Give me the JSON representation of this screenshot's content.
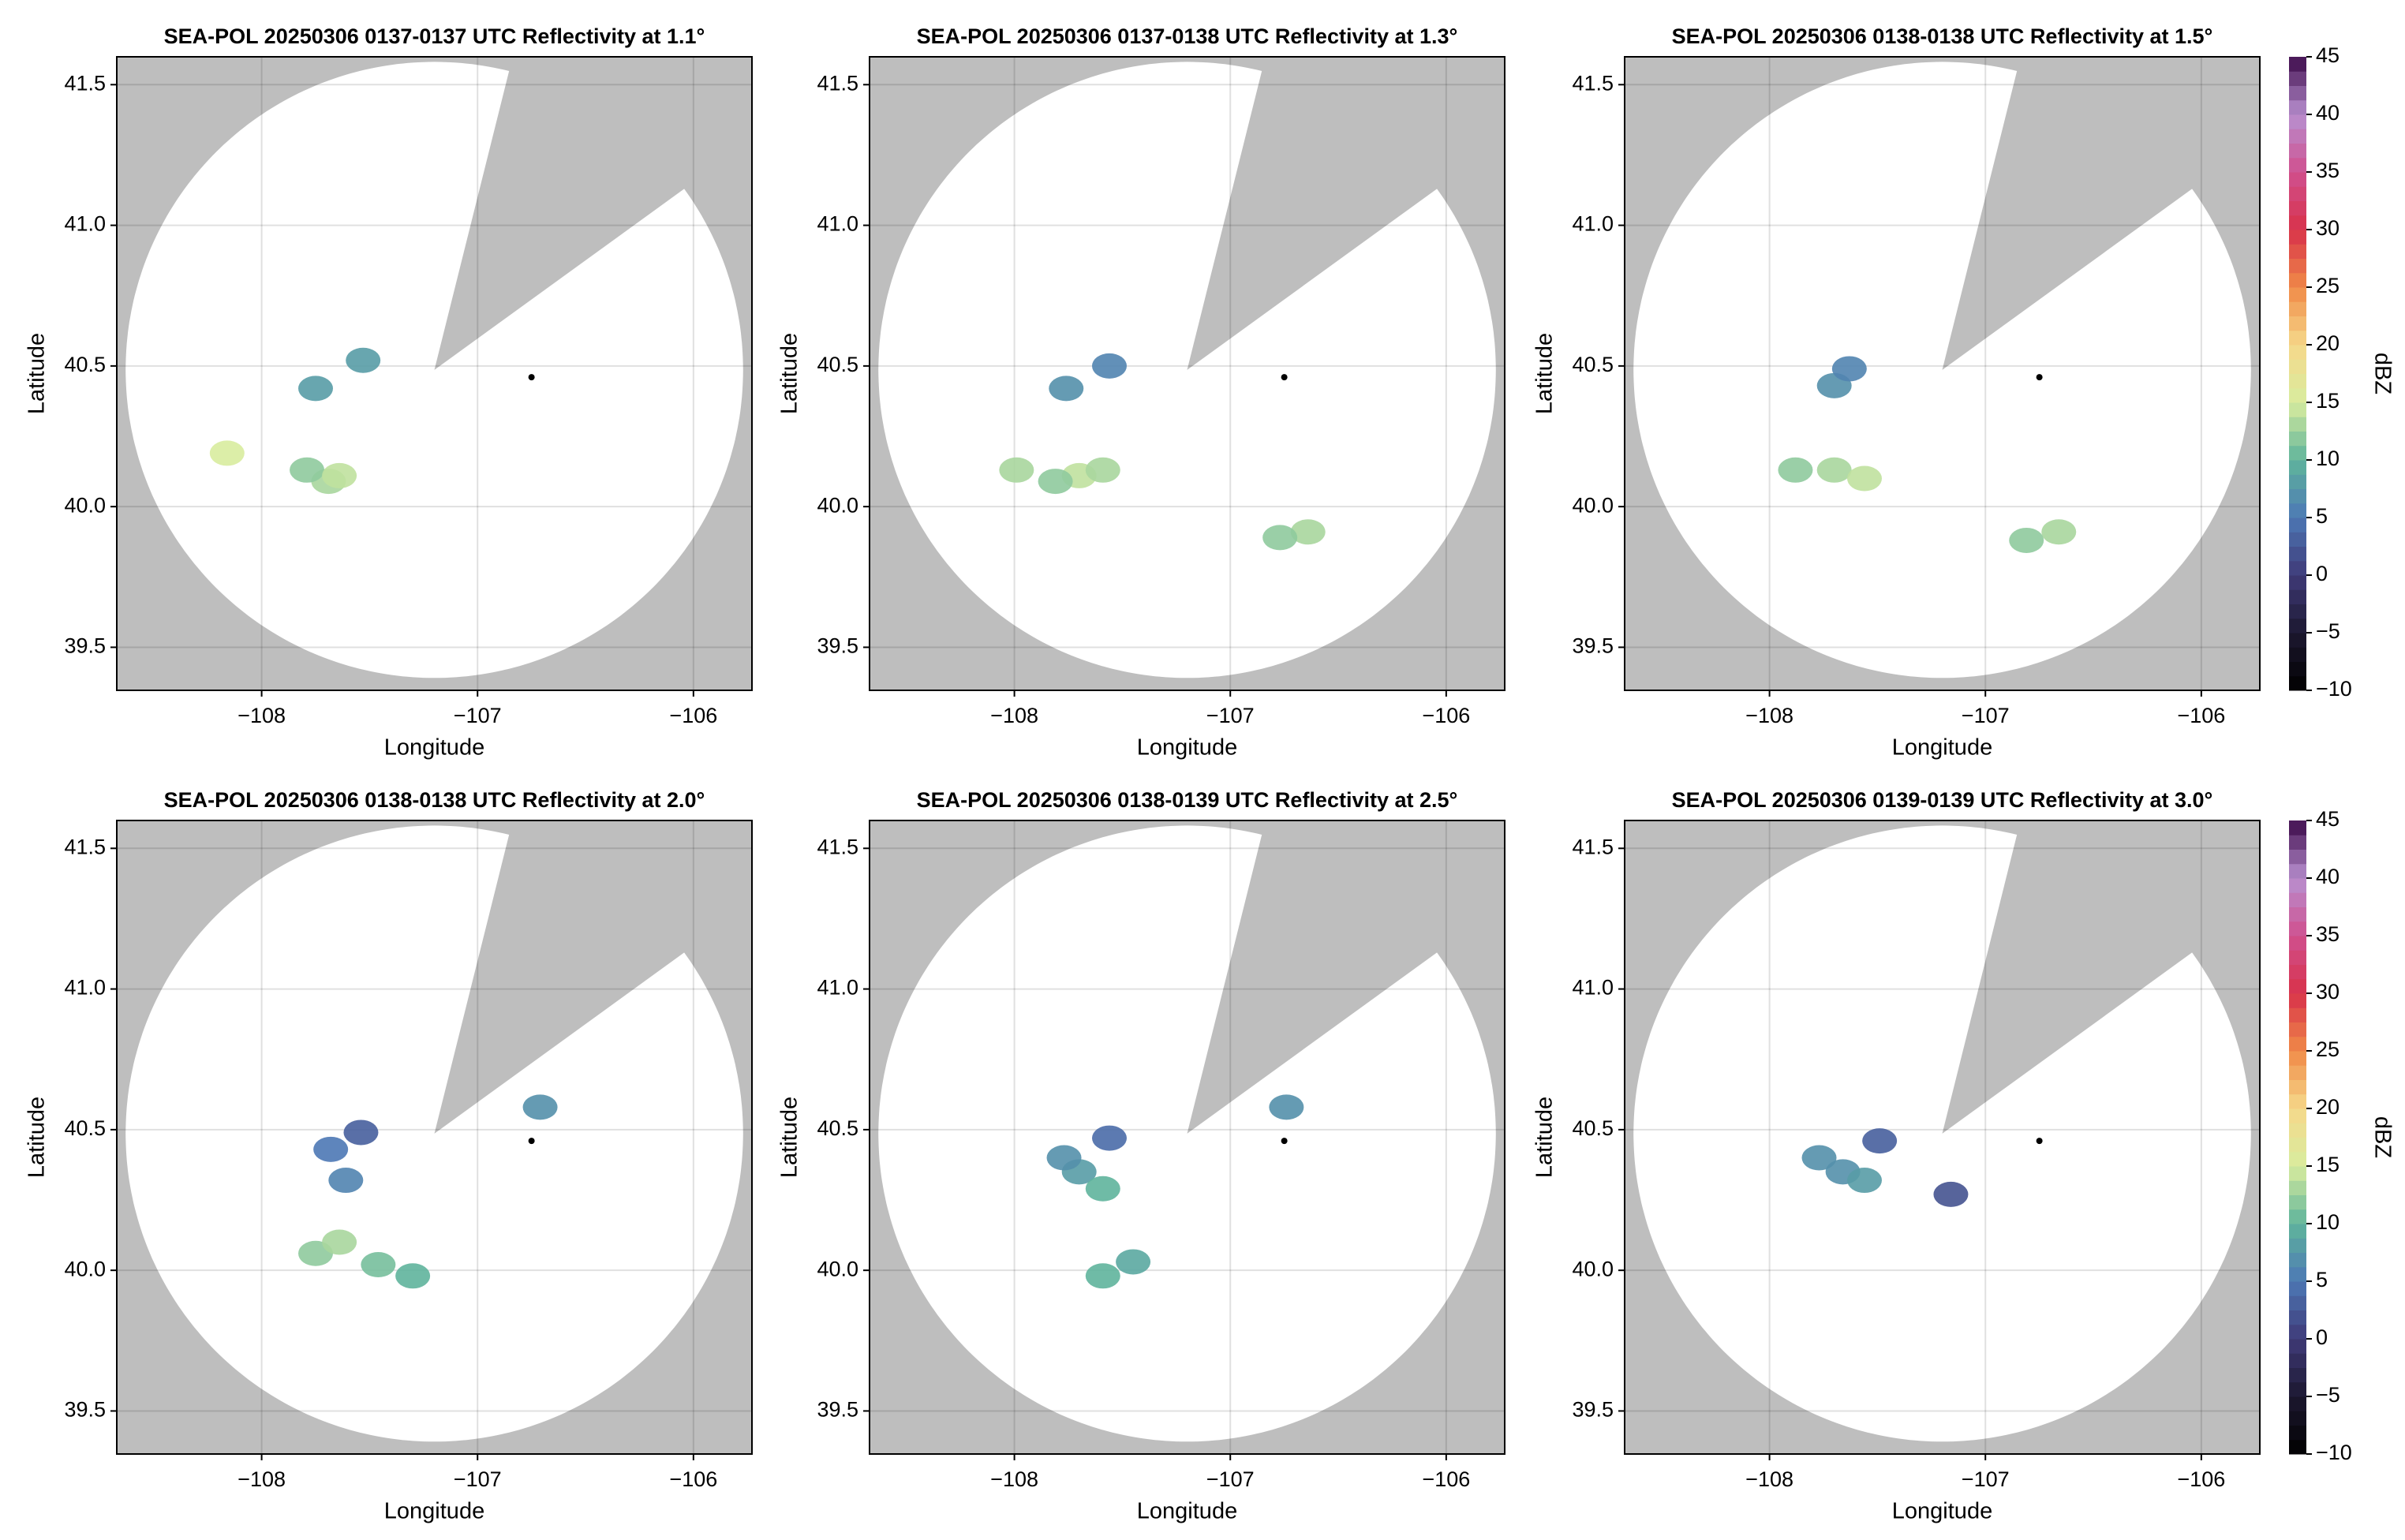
{
  "chart_data": [
    {
      "type": "radar-ppi",
      "title": "SEA-POL 20250306 0137-0137 UTC Reflectivity at 1.1°",
      "x_label": "Longitude",
      "y_label": "Latitude",
      "xlim": [
        -108.671,
        -105.729
      ],
      "ylim": [
        39.347,
        41.599
      ],
      "xticks": [
        {
          "value": -108,
          "label": "−108"
        },
        {
          "value": -107,
          "label": "−107"
        },
        {
          "value": -106,
          "label": "−106"
        }
      ],
      "yticks": [
        39.5,
        {
          "value": 40,
          "label": "40.0"
        },
        40.5,
        {
          "value": 41,
          "label": "41.0"
        },
        41.5
      ],
      "grid": true,
      "coverage": {
        "center": [
          -107.2,
          40.486
        ],
        "radius_lon": 1.43,
        "radius_lat": 1.095,
        "blocked_azimuth": [
          14,
          54
        ]
      },
      "radar": [
        -106.75,
        40.46
      ],
      "points": {
        "lon": [
          -107.75,
          -107.69,
          -107.79,
          -107.64,
          -108.16,
          -107.53
        ],
        "lat": [
          40.42,
          40.09,
          40.13,
          40.11,
          40.19,
          40.52
        ],
        "dbz": [
          8,
          13,
          12,
          14,
          15,
          8
        ]
      }
    },
    {
      "type": "radar-ppi",
      "title": "SEA-POL 20250306 0137-0138 UTC Reflectivity at 1.3°",
      "x_label": "Longitude",
      "y_label": "Latitude",
      "xlim": [
        -108.671,
        -105.729
      ],
      "ylim": [
        39.347,
        41.599
      ],
      "xticks": [
        {
          "value": -108,
          "label": "−108"
        },
        {
          "value": -107,
          "label": "−107"
        },
        {
          "value": -106,
          "label": "−106"
        }
      ],
      "yticks": [
        39.5,
        {
          "value": 40,
          "label": "40.0"
        },
        40.5,
        {
          "value": 41,
          "label": "41.0"
        },
        41.5
      ],
      "grid": true,
      "coverage": {
        "center": [
          -107.2,
          40.486
        ],
        "radius_lon": 1.43,
        "radius_lat": 1.095,
        "blocked_azimuth": [
          14,
          54
        ]
      },
      "radar": [
        -106.75,
        40.46
      ],
      "points": {
        "lon": [
          -107.76,
          -107.99,
          -107.7,
          -107.59,
          -107.81,
          -106.64,
          -106.77,
          -107.56
        ],
        "lat": [
          40.42,
          40.13,
          40.11,
          40.13,
          40.09,
          39.91,
          39.89,
          40.5
        ],
        "dbz": [
          7,
          13,
          14,
          13,
          12,
          13,
          12,
          6
        ]
      }
    },
    {
      "type": "radar-ppi",
      "title": "SEA-POL 20250306 0138-0138 UTC Reflectivity at 1.5°",
      "x_label": "Longitude",
      "y_label": "Latitude",
      "xlim": [
        -108.671,
        -105.729
      ],
      "ylim": [
        39.347,
        41.599
      ],
      "xticks": [
        {
          "value": -108,
          "label": "−108"
        },
        {
          "value": -107,
          "label": "−107"
        },
        {
          "value": -106,
          "label": "−106"
        }
      ],
      "yticks": [
        39.5,
        {
          "value": 40,
          "label": "40.0"
        },
        40.5,
        {
          "value": 41,
          "label": "41.0"
        },
        41.5
      ],
      "grid": true,
      "coverage": {
        "center": [
          -107.2,
          40.486
        ],
        "radius_lon": 1.43,
        "radius_lat": 1.095,
        "blocked_azimuth": [
          14,
          54
        ]
      },
      "radar": [
        -106.75,
        40.46
      ],
      "points": {
        "lon": [
          -107.7,
          -107.63,
          -107.7,
          -107.88,
          -107.56,
          -106.66,
          -106.81
        ],
        "lat": [
          40.43,
          40.49,
          40.13,
          40.13,
          40.1,
          39.91,
          39.88
        ],
        "dbz": [
          7,
          6,
          13,
          12,
          14,
          13,
          12
        ]
      },
      "colorbar": {
        "label": "dBZ",
        "lim": [
          -10,
          45
        ],
        "ticks": [
          {
            "value": -10,
            "label": "−10"
          },
          {
            "value": -5,
            "label": "−5"
          },
          0,
          5,
          10,
          15,
          20,
          25,
          30,
          35,
          40,
          45
        ]
      }
    },
    {
      "type": "radar-ppi",
      "title": "SEA-POL 20250306 0138-0138 UTC Reflectivity at 2.0°",
      "x_label": "Longitude",
      "y_label": "Latitude",
      "xlim": [
        -108.671,
        -105.729
      ],
      "ylim": [
        39.347,
        41.599
      ],
      "xticks": [
        {
          "value": -108,
          "label": "−108"
        },
        {
          "value": -107,
          "label": "−107"
        },
        {
          "value": -106,
          "label": "−106"
        }
      ],
      "yticks": [
        39.5,
        {
          "value": 40,
          "label": "40.0"
        },
        40.5,
        {
          "value": 41,
          "label": "41.0"
        },
        41.5
      ],
      "grid": true,
      "coverage": {
        "center": [
          -107.2,
          40.486
        ],
        "radius_lon": 1.43,
        "radius_lat": 1.095,
        "blocked_azimuth": [
          14,
          54
        ]
      },
      "radar": [
        -106.75,
        40.46
      ],
      "points": {
        "lon": [
          -107.68,
          -107.54,
          -107.61,
          -107.75,
          -107.64,
          -107.46,
          -107.3,
          -106.71
        ],
        "lat": [
          40.43,
          40.49,
          40.32,
          40.06,
          40.1,
          40.02,
          39.98,
          40.58
        ],
        "dbz": [
          5,
          3,
          6,
          12,
          13,
          11,
          10,
          7
        ]
      }
    },
    {
      "type": "radar-ppi",
      "title": "SEA-POL 20250306 0138-0139 UTC Reflectivity at 2.5°",
      "x_label": "Longitude",
      "y_label": "Latitude",
      "xlim": [
        -108.671,
        -105.729
      ],
      "ylim": [
        39.347,
        41.599
      ],
      "xticks": [
        {
          "value": -108,
          "label": "−108"
        },
        {
          "value": -107,
          "label": "−107"
        },
        {
          "value": -106,
          "label": "−106"
        }
      ],
      "yticks": [
        39.5,
        {
          "value": 40,
          "label": "40.0"
        },
        40.5,
        {
          "value": 41,
          "label": "41.0"
        },
        41.5
      ],
      "grid": true,
      "coverage": {
        "center": [
          -107.2,
          40.486
        ],
        "radius_lon": 1.43,
        "radius_lat": 1.095,
        "blocked_azimuth": [
          14,
          54
        ]
      },
      "radar": [
        -106.75,
        40.46
      ],
      "points": {
        "lon": [
          -107.7,
          -107.56,
          -107.77,
          -107.59,
          -107.45,
          -107.59,
          -106.74
        ],
        "lat": [
          40.35,
          40.47,
          40.4,
          40.29,
          40.03,
          39.98,
          40.58
        ],
        "dbz": [
          8,
          4,
          7,
          10,
          9,
          10,
          7
        ]
      }
    },
    {
      "type": "radar-ppi",
      "title": "SEA-POL 20250306 0139-0139 UTC Reflectivity at 3.0°",
      "x_label": "Longitude",
      "y_label": "Latitude",
      "xlim": [
        -108.671,
        -105.729
      ],
      "ylim": [
        39.347,
        41.599
      ],
      "xticks": [
        {
          "value": -108,
          "label": "−108"
        },
        {
          "value": -107,
          "label": "−107"
        },
        {
          "value": -106,
          "label": "−106"
        }
      ],
      "yticks": [
        39.5,
        {
          "value": 40,
          "label": "40.0"
        },
        40.5,
        {
          "value": 41,
          "label": "41.0"
        },
        41.5
      ],
      "grid": true,
      "coverage": {
        "center": [
          -107.2,
          40.486
        ],
        "radius_lon": 1.43,
        "radius_lat": 1.095,
        "blocked_azimuth": [
          14,
          54
        ]
      },
      "radar": [
        -106.75,
        40.46
      ],
      "points": {
        "lon": [
          -107.66,
          -107.49,
          -107.77,
          -107.56,
          -107.16
        ],
        "lat": [
          40.35,
          40.46,
          40.4,
          40.32,
          40.27
        ],
        "dbz": [
          7,
          3,
          7,
          8,
          2
        ]
      },
      "colorbar": {
        "label": "dBZ",
        "lim": [
          -10,
          45
        ],
        "ticks": [
          {
            "value": -10,
            "label": "−10"
          },
          {
            "value": -5,
            "label": "−5"
          },
          0,
          5,
          10,
          15,
          20,
          25,
          30,
          35,
          40,
          45
        ]
      }
    }
  ],
  "colormap": [
    "#000000",
    "#1c1830",
    "#3f3a78",
    "#4d78b5",
    "#5fb49c",
    "#d8ec9e",
    "#f6d98a",
    "#f08a48",
    "#d8324a",
    "#d0508f",
    "#b890d0",
    "#3c0a4a"
  ],
  "mask_color": "#bebebe"
}
